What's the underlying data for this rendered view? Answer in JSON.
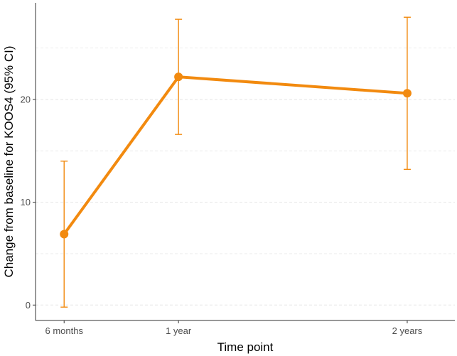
{
  "chart_data": {
    "type": "line",
    "title": "",
    "xlabel": "Time point",
    "ylabel": "Change from baseline for KOOS4 (95% CI)",
    "categories": [
      "6 months",
      "1 year",
      "2 years"
    ],
    "x_positions_months": [
      6,
      12,
      24
    ],
    "series": [
      {
        "values": [
          6.9,
          22.2,
          20.6
        ],
        "ci_lower": [
          -0.2,
          16.6,
          13.2
        ],
        "ci_upper": [
          14.0,
          27.8,
          28.0
        ]
      }
    ],
    "yticks": [
      0,
      10,
      20
    ],
    "ylim": [
      -1.5,
      29.4
    ],
    "xlim_months": [
      4.5,
      26.5
    ],
    "grid": "horizontal dashed",
    "legend": "none",
    "colors": {
      "series": "#f28a0f",
      "grid": "#e5e5e5",
      "axis": "#333333"
    }
  }
}
